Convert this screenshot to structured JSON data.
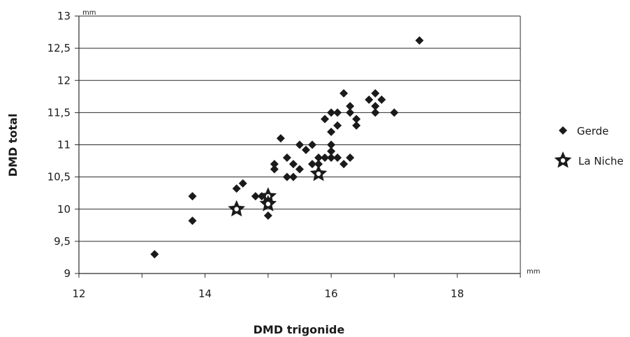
{
  "chart_data": {
    "type": "scatter",
    "title": "",
    "xlabel": "DMD trigonide",
    "ylabel": "DMD total",
    "x_unit": "mm",
    "y_unit": "mm",
    "xlim": [
      12,
      19
    ],
    "ylim": [
      9,
      13
    ],
    "x_ticks": [
      "12",
      "14",
      "16",
      "18"
    ],
    "y_ticks": [
      "9",
      "9,5",
      "10",
      "10,5",
      "11",
      "11,5",
      "12",
      "12,5",
      "13"
    ],
    "grid": "horizontal",
    "legend_position": "right",
    "series": [
      {
        "name": "Gerde",
        "marker": "diamond",
        "color": "#1a1a1a",
        "points": [
          [
            13.2,
            9.3
          ],
          [
            13.8,
            9.82
          ],
          [
            13.8,
            10.2
          ],
          [
            14.5,
            10.32
          ],
          [
            14.6,
            10.4
          ],
          [
            14.8,
            10.2
          ],
          [
            14.9,
            10.2
          ],
          [
            15.0,
            9.9
          ],
          [
            15.0,
            10.1
          ],
          [
            15.0,
            10.2
          ],
          [
            15.1,
            10.62
          ],
          [
            15.1,
            10.7
          ],
          [
            15.2,
            11.1
          ],
          [
            15.3,
            10.8
          ],
          [
            15.3,
            10.5
          ],
          [
            15.4,
            10.5
          ],
          [
            15.4,
            10.7
          ],
          [
            15.5,
            10.62
          ],
          [
            15.5,
            11.0
          ],
          [
            15.6,
            10.92
          ],
          [
            15.7,
            11.0
          ],
          [
            15.7,
            10.7
          ],
          [
            15.8,
            10.7
          ],
          [
            15.8,
            10.8
          ],
          [
            15.9,
            10.8
          ],
          [
            15.9,
            11.4
          ],
          [
            16.0,
            10.8
          ],
          [
            16.0,
            10.9
          ],
          [
            16.0,
            11.0
          ],
          [
            16.0,
            11.5
          ],
          [
            16.0,
            11.2
          ],
          [
            16.1,
            11.3
          ],
          [
            16.1,
            11.5
          ],
          [
            16.1,
            10.8
          ],
          [
            16.2,
            10.7
          ],
          [
            16.2,
            11.8
          ],
          [
            16.3,
            10.8
          ],
          [
            16.3,
            11.5
          ],
          [
            16.3,
            11.6
          ],
          [
            16.4,
            11.3
          ],
          [
            16.4,
            11.4
          ],
          [
            16.6,
            11.7
          ],
          [
            16.7,
            11.8
          ],
          [
            16.7,
            11.6
          ],
          [
            16.7,
            11.5
          ],
          [
            16.8,
            11.7
          ],
          [
            17.0,
            11.5
          ],
          [
            17.4,
            12.62
          ]
        ]
      },
      {
        "name": "La Niche",
        "marker": "star",
        "color": "#1a1a1a",
        "points": [
          [
            14.5,
            10.0
          ],
          [
            15.0,
            10.2
          ],
          [
            15.0,
            10.08
          ],
          [
            15.8,
            10.55
          ]
        ]
      }
    ]
  }
}
